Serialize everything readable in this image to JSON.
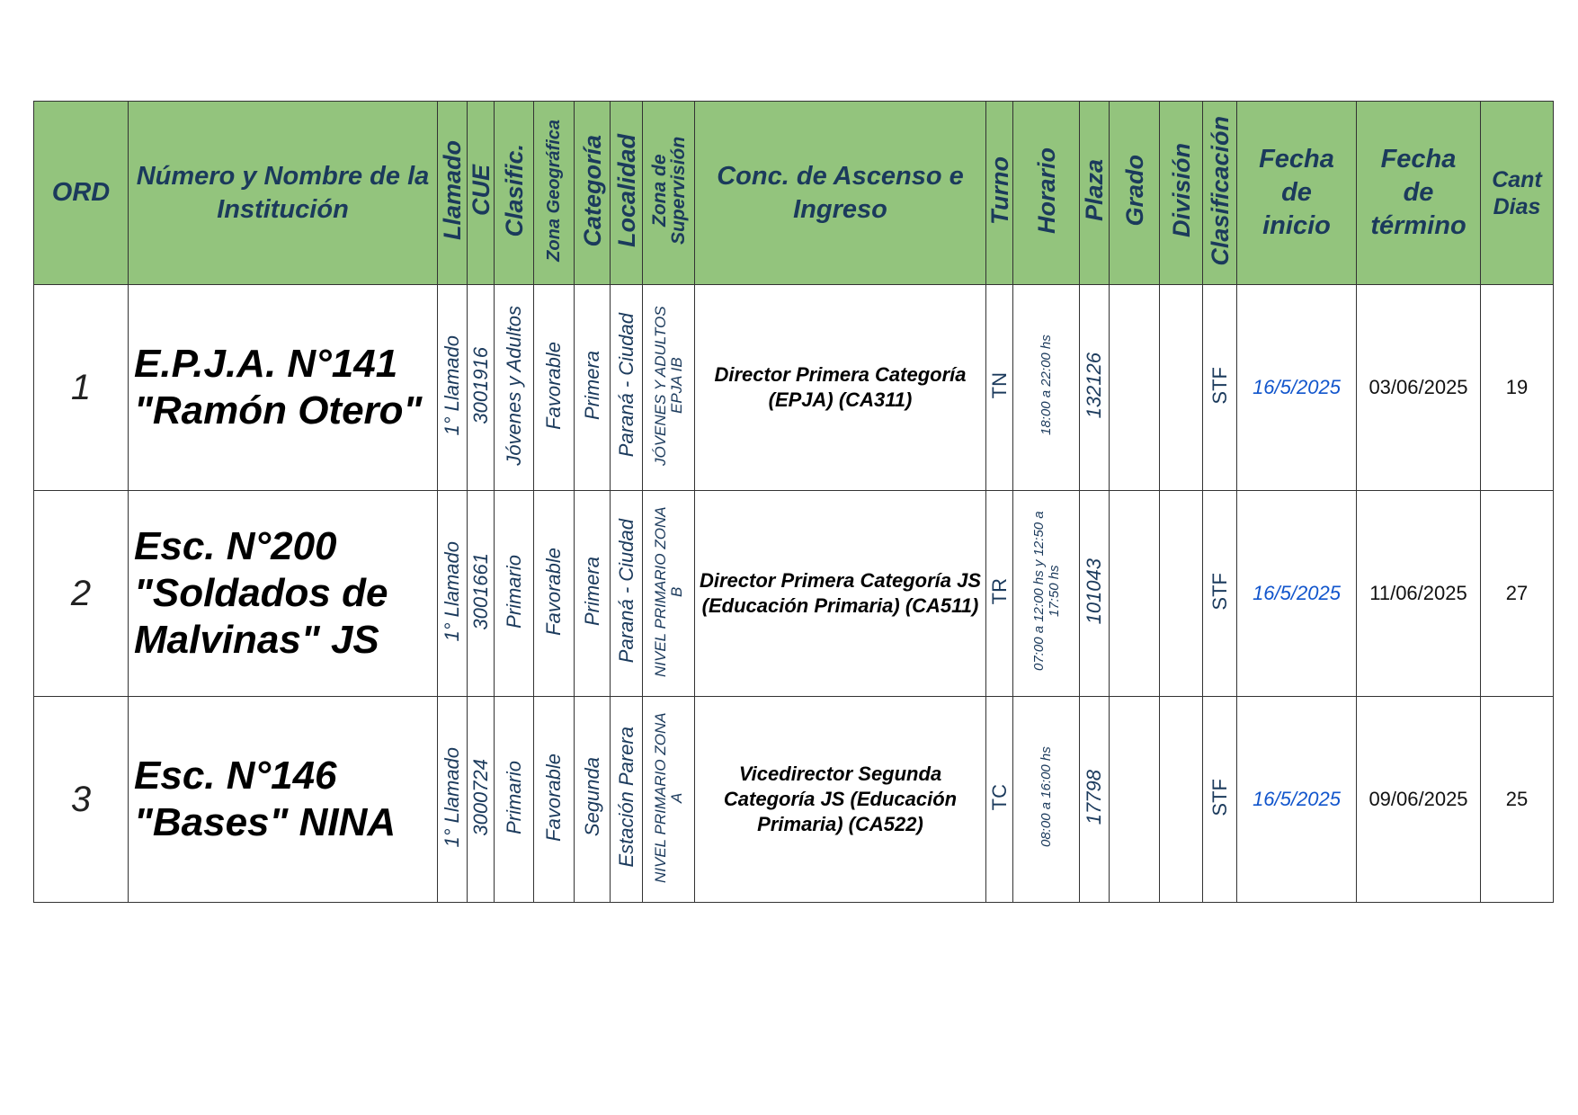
{
  "colors": {
    "header_bg": "#93c47d",
    "header_text": "#1b3a5c",
    "body_text": "#1b3a5c",
    "date_start": "#1155cc"
  },
  "headers": {
    "ord": "ORD",
    "institucion": "Número y Nombre de la Institución",
    "llamado": "Llamado",
    "cue": "CUE",
    "clasific": "Clasific.",
    "zona_geografica": "Zona Geográfica",
    "categoria": "Categoría",
    "localidad": "Localidad",
    "zona_supervision": "Zona de Supervisión",
    "conc": "Conc. de Ascenso e Ingreso",
    "turno": "Turno",
    "horario": "Horario",
    "plaza": "Plaza",
    "grado": "Grado",
    "division": "División",
    "clasificacion": "Clasificación",
    "fecha_inicio": "Fecha de inicio",
    "fecha_termino": "Fecha de término",
    "cant_dias": "Cant Dias"
  },
  "rows": [
    {
      "ord": "1",
      "institucion": "E.P.J.A. N°141 \"Ramón Otero\"",
      "llamado": "1° Llamado",
      "cue": "3001916",
      "clasific": "Jóvenes y Adultos",
      "zona_geografica": "Favorable",
      "categoria": "Primera",
      "localidad": "Paraná - Ciudad",
      "zona_supervision": "JÓVENES Y ADULTOS EPJA IB",
      "conc": "Director Primera Categoría (EPJA) (CA311)",
      "turno": "TN",
      "horario": "18:00 a 22:00 hs",
      "plaza": "132126",
      "grado": "",
      "division": "",
      "clasificacion": "STF",
      "fecha_inicio": "16/5/2025",
      "fecha_termino": "03/06/2025",
      "cant_dias": "19"
    },
    {
      "ord": "2",
      "institucion": "Esc. N°200 \"Soldados de Malvinas\" JS",
      "llamado": "1° Llamado",
      "cue": "3001661",
      "clasific": "Primario",
      "zona_geografica": "Favorable",
      "categoria": "Primera",
      "localidad": "Paraná - Ciudad",
      "zona_supervision": "NIVEL PRIMARIO ZONA B",
      "conc": "Director Primera Categoría JS (Educación Primaria) (CA511)",
      "turno": "TR",
      "horario": "07:00 a 12:00 hs y 12:50 a 17:50 hs",
      "plaza": "101043",
      "grado": "",
      "division": "",
      "clasificacion": "STF",
      "fecha_inicio": "16/5/2025",
      "fecha_termino": "11/06/2025",
      "cant_dias": "27"
    },
    {
      "ord": "3",
      "institucion": "Esc. N°146 \"Bases\" NINA",
      "llamado": "1° Llamado",
      "cue": "3000724",
      "clasific": "Primario",
      "zona_geografica": "Favorable",
      "categoria": "Segunda",
      "localidad": "Estación Parera",
      "zona_supervision": "NIVEL PRIMARIO ZONA A",
      "conc": "Vicedirector Segunda Categoría JS (Educación Primaria) (CA522)",
      "turno": "TC",
      "horario": "08:00 a 16:00 hs",
      "plaza": "17798",
      "grado": "",
      "division": "",
      "clasificacion": "STF",
      "fecha_inicio": "16/5/2025",
      "fecha_termino": "09/06/2025",
      "cant_dias": "25"
    }
  ]
}
